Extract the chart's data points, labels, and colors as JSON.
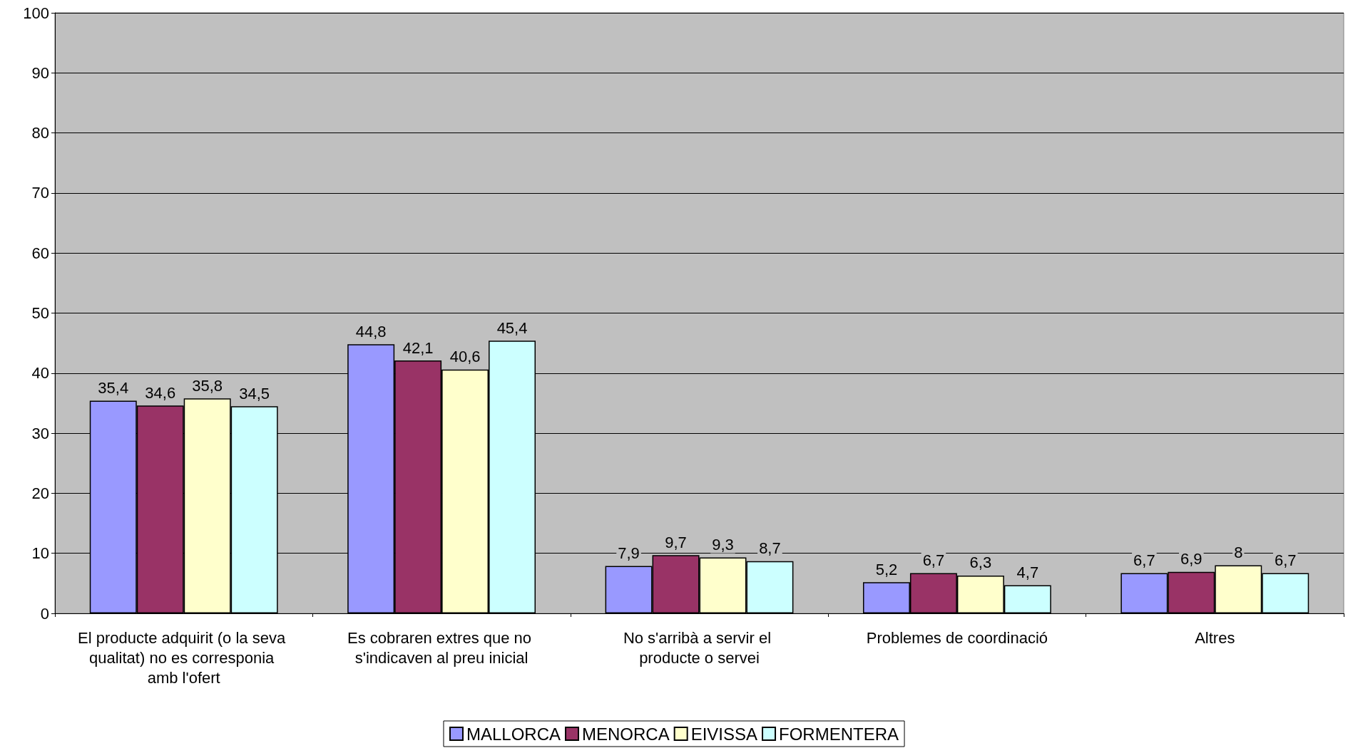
{
  "chart_data": {
    "type": "bar",
    "categories": [
      "El producte adquirit (o la seva qualitat) no es corresponia amb l'ofert",
      "Es cobraren extres que no s'indicaven al preu inicial",
      "No s'arribà a servir el producte o servei",
      "Problemes de coordinació",
      "Altres"
    ],
    "series": [
      {
        "name": "MALLORCA",
        "color": "#9999ff",
        "values": [
          35.4,
          44.8,
          7.9,
          5.2,
          6.7
        ],
        "value_labels": [
          "35,4",
          "44,8",
          "7,9",
          "5,2",
          "6,7"
        ]
      },
      {
        "name": "MENORCA",
        "color": "#993366",
        "values": [
          34.6,
          42.1,
          9.7,
          6.7,
          6.9
        ],
        "value_labels": [
          "34,6",
          "42,1",
          "9,7",
          "6,7",
          "6,9"
        ]
      },
      {
        "name": "EIVISSA",
        "color": "#ffffcc",
        "values": [
          35.8,
          40.6,
          9.3,
          6.3,
          8
        ],
        "value_labels": [
          "35,8",
          "40,6",
          "9,3",
          "6,3",
          "8"
        ]
      },
      {
        "name": "FORMENTERA",
        "color": "#ccffff",
        "values": [
          34.5,
          45.4,
          8.7,
          4.7,
          6.7
        ],
        "value_labels": [
          "34,5",
          "45,4",
          "8,7",
          "4,7",
          "6,7"
        ]
      }
    ],
    "ylim": [
      0,
      100
    ],
    "yticks": [
      0,
      10,
      20,
      30,
      40,
      50,
      60,
      70,
      80,
      90,
      100
    ],
    "grid": "y",
    "legend": "bottom"
  }
}
